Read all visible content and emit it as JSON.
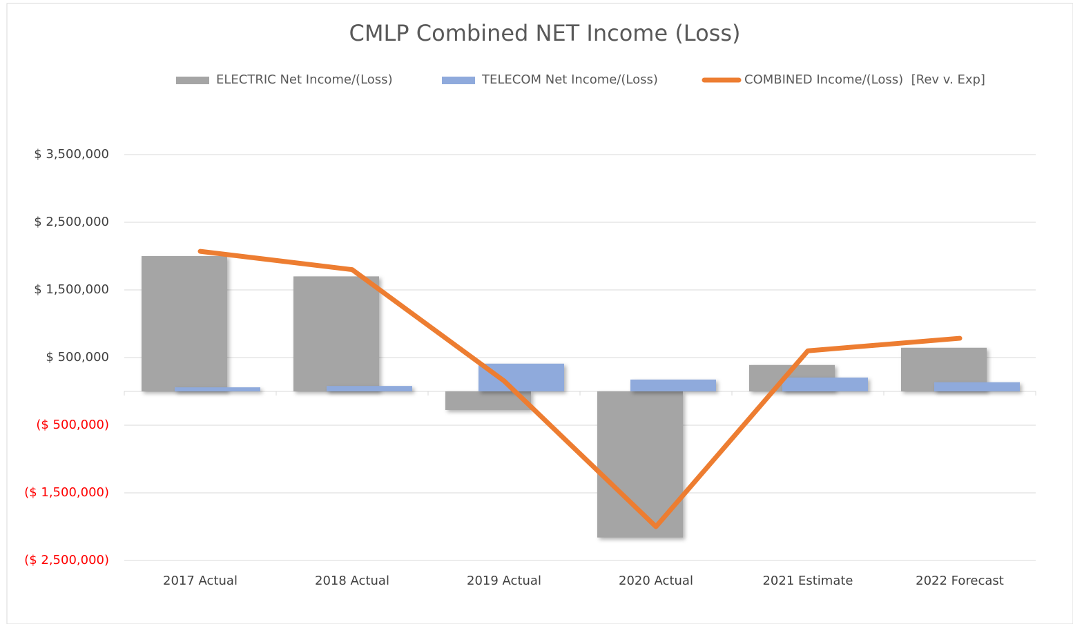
{
  "chart_data": {
    "type": "bar_line",
    "title": "CMLP Combined NET Income (Loss)",
    "categories": [
      "2017 Actual",
      "2018 Actual",
      "2019 Actual",
      "2020 Actual",
      "2021 Estimate",
      "2022 Forecast"
    ],
    "series": [
      {
        "name": "ELECTRIC Net Income/(Loss)",
        "type": "bar",
        "color": "#a5a5a5",
        "values": [
          2000000,
          1700000,
          -275000,
          -2160000,
          390000,
          645000
        ]
      },
      {
        "name": "TELECOM Net Income/(Loss)",
        "type": "bar",
        "color": "#8faadc",
        "values": [
          60000,
          80000,
          410000,
          175000,
          205000,
          135000
        ]
      },
      {
        "name": "COMBINED Income/(Loss)  [Rev v. Exp]",
        "type": "line",
        "color": "#ed7d31",
        "values": [
          2070000,
          1800000,
          155000,
          -2000000,
          600000,
          785000
        ]
      }
    ],
    "ylim": [
      -2500000,
      3500000
    ],
    "yticks": [
      {
        "value": -2500000,
        "label": "($ 2,500,000)"
      },
      {
        "value": -1500000,
        "label": "($ 1,500,000)"
      },
      {
        "value": -500000,
        "label": "($ 500,000)"
      },
      {
        "value": 500000,
        "label": "$ 500,000"
      },
      {
        "value": 1500000,
        "label": "$ 1,500,000"
      },
      {
        "value": 2500000,
        "label": "$ 2,500,000"
      },
      {
        "value": 3500000,
        "label": "$ 3,500,000"
      }
    ],
    "grid": true,
    "negative_tick_color": "#ff0000",
    "legend": "top"
  }
}
